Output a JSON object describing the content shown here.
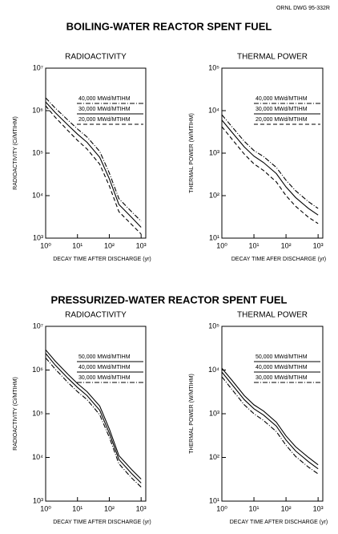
{
  "drawing_number": "ORNL DWG 95-332R",
  "section_titles": [
    "BOILING-WATER REACTOR SPENT FUEL",
    "PRESSURIZED-WATER REACTOR SPENT FUEL"
  ],
  "chart_data": [
    {
      "type": "line",
      "title": "RADIOACTIVITY",
      "x_label": "DECAY TIME AFTER DISCHARGE (yr)",
      "y_label": "RADIOACTIVITY (Ci/MTIHM)",
      "x": [
        1,
        2,
        5,
        10,
        20,
        50,
        100,
        200,
        500,
        1000
      ],
      "xscale": "log",
      "yscale": "log",
      "xlim": [
        1,
        1400
      ],
      "ylim": [
        1000,
        10000000
      ],
      "xticks": [
        {
          "value": 1,
          "label": "10⁰"
        },
        {
          "value": 10,
          "label": "10¹"
        },
        {
          "value": 100,
          "label": "10²"
        },
        {
          "value": 1000,
          "label": "10³"
        }
      ],
      "yticks": [
        {
          "value": 1000,
          "label": "10³"
        },
        {
          "value": 10000,
          "label": "10⁴"
        },
        {
          "value": 100000,
          "label": "10⁵"
        },
        {
          "value": 1000000,
          "label": "10⁶"
        },
        {
          "value": 10000000,
          "label": "10⁷"
        }
      ],
      "legend": "upper right",
      "series": [
        {
          "name": "40,000 MWd/MTIHM",
          "color": "#000000",
          "dash": "dash-dot",
          "values": [
            2000000,
            1150000,
            600000,
            370000,
            240000,
            110000,
            34000,
            8500,
            4200,
            2500
          ]
        },
        {
          "name": "30,000 MWd/MTIHM",
          "color": "#000000",
          "dash": "solid",
          "values": [
            1600000,
            900000,
            460000,
            280000,
            180000,
            80000,
            25000,
            6200,
            3100,
            1800
          ]
        },
        {
          "name": "20,000 MWd/MTIHM",
          "color": "#000000",
          "dash": "dash",
          "values": [
            1300000,
            700000,
            340000,
            200000,
            125000,
            55000,
            17000,
            4200,
            2100,
            1250
          ]
        }
      ]
    },
    {
      "type": "line",
      "title": "THERMAL POWER",
      "x_label": "DECAY TIME AFER DISCHARGE (yr)",
      "y_label": "THERMAL POWER (W/MTIHM)",
      "x": [
        1,
        2,
        5,
        10,
        20,
        50,
        100,
        200,
        500,
        1000
      ],
      "xscale": "log",
      "yscale": "log",
      "xlim": [
        1,
        1400
      ],
      "ylim": [
        10,
        100000
      ],
      "xticks": [
        {
          "value": 1,
          "label": "10⁰"
        },
        {
          "value": 10,
          "label": "10¹"
        },
        {
          "value": 100,
          "label": "10²"
        },
        {
          "value": 1000,
          "label": "10³"
        }
      ],
      "yticks": [
        {
          "value": 10,
          "label": "10¹"
        },
        {
          "value": 100,
          "label": "10²"
        },
        {
          "value": 1000,
          "label": "10³"
        },
        {
          "value": 10000,
          "label": "10⁴"
        },
        {
          "value": 100000,
          "label": "10⁵"
        }
      ],
      "legend": "upper right",
      "series": [
        {
          "name": "40,000 MWd/MTIHM",
          "color": "#000000",
          "dash": "dash-dot",
          "values": [
            8000,
            4300,
            1900,
            1150,
            830,
            460,
            230,
            130,
            72,
            50
          ]
        },
        {
          "name": "30,000 MWd/MTIHM",
          "color": "#000000",
          "dash": "solid",
          "values": [
            6000,
            3200,
            1400,
            850,
            600,
            330,
            160,
            90,
            50,
            35
          ]
        },
        {
          "name": "20,000 MWd/MTIHM",
          "color": "#000000",
          "dash": "dash",
          "values": [
            4200,
            2200,
            950,
            560,
            390,
            210,
            100,
            56,
            31,
            22
          ]
        }
      ]
    },
    {
      "type": "line",
      "title": "RADIOACTIVITY",
      "x_label": "DECAY TIME AFTER DISCHARGE (yr)",
      "y_label": "RADIOACTIVITY (Ci/MTIHM)",
      "x": [
        1,
        2,
        5,
        10,
        20,
        50,
        100,
        200,
        500,
        1000
      ],
      "xscale": "log",
      "yscale": "log",
      "xlim": [
        1,
        1400
      ],
      "ylim": [
        1000,
        10000000
      ],
      "xticks": [
        {
          "value": 1,
          "label": "10⁰"
        },
        {
          "value": 10,
          "label": "10¹"
        },
        {
          "value": 100,
          "label": "10²"
        },
        {
          "value": 1000,
          "label": "10³"
        }
      ],
      "yticks": [
        {
          "value": 1000,
          "label": "10³"
        },
        {
          "value": 10000,
          "label": "10⁴"
        },
        {
          "value": 100000,
          "label": "10⁵"
        },
        {
          "value": 1000000,
          "label": "10⁶"
        },
        {
          "value": 10000000,
          "label": "10⁷"
        }
      ],
      "legend": "upper right",
      "series": [
        {
          "name": "50,000 MWd/MTIHM",
          "color": "#000000",
          "dash": "solid",
          "values": [
            2900000,
            1600000,
            800000,
            490000,
            320000,
            150000,
            45000,
            11000,
            5300,
            3200
          ]
        },
        {
          "name": "40,000 MWd/MTIHM",
          "color": "#000000",
          "dash": "solid",
          "values": [
            2400000,
            1300000,
            650000,
            400000,
            260000,
            120000,
            36000,
            9000,
            4300,
            2600
          ]
        },
        {
          "name": "30,000 MWd/MTIHM",
          "color": "#000000",
          "dash": "dash-dot",
          "values": [
            1900000,
            1050000,
            520000,
            320000,
            210000,
            95000,
            29000,
            7200,
            3400,
            2100
          ]
        }
      ]
    },
    {
      "type": "line",
      "title": "THERMAL POWER",
      "x_label": "DECAY TIME AFTER DISCHARGE (yr)",
      "y_label": "THERMAL POWER (W/MTIHM)",
      "x": [
        1,
        2,
        5,
        10,
        20,
        50,
        100,
        200,
        500,
        1000
      ],
      "xscale": "log",
      "yscale": "log",
      "xlim": [
        1,
        1400
      ],
      "ylim": [
        10,
        100000
      ],
      "xticks": [
        {
          "value": 1,
          "label": "10⁰"
        },
        {
          "value": 10,
          "label": "10¹"
        },
        {
          "value": 100,
          "label": "10²"
        },
        {
          "value": 1000,
          "label": "10³"
        }
      ],
      "yticks": [
        {
          "value": 10,
          "label": "10¹"
        },
        {
          "value": 100,
          "label": "10²"
        },
        {
          "value": 1000,
          "label": "10³"
        },
        {
          "value": 10000,
          "label": "10⁴"
        },
        {
          "value": 100000,
          "label": "10⁵"
        }
      ],
      "legend": "upper right",
      "series": [
        {
          "name": "50,000 MWd/MTIHM",
          "color": "#000000",
          "dash": "solid",
          "values": [
            11000,
            6000,
            2600,
            1600,
            1150,
            640,
            310,
            175,
            100,
            68
          ]
        },
        {
          "name": "40,000 MWd/MTIHM",
          "color": "#000000",
          "dash": "solid",
          "values": [
            9000,
            4800,
            2100,
            1300,
            930,
            520,
            250,
            140,
            80,
            55
          ]
        },
        {
          "name": "30,000 MWd/MTIHM",
          "color": "#000000",
          "dash": "dash-dot",
          "values": [
            7000,
            3700,
            1600,
            1000,
            700,
            390,
            190,
            105,
            60,
            42
          ]
        }
      ]
    }
  ]
}
